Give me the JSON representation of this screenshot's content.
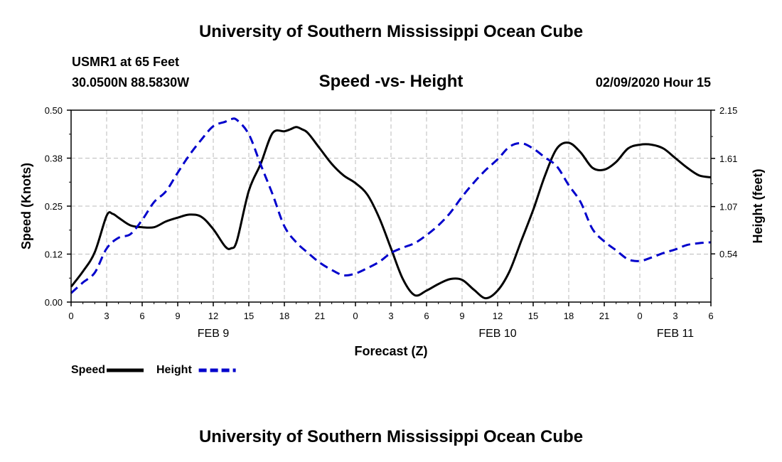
{
  "header": {
    "title_top": "University of Southern Mississippi Ocean Cube",
    "station": "USMR1 at 65 Feet",
    "coords": "30.0500N 88.5830W",
    "plot_title": "Speed -vs- Height",
    "date": "02/09/2020 Hour 15",
    "title_bottom": "University of Southern Mississippi Ocean Cube"
  },
  "chart_data": {
    "type": "line",
    "title": "Speed -vs- Height",
    "xlabel": "Forecast (Z)",
    "ylabel": "Speed (Knots)",
    "y2label": "Height (feet)",
    "x_range": [
      0,
      54
    ],
    "x_unit": "hours since 02/09/2020 00Z",
    "x_ticks": [
      0,
      3,
      6,
      9,
      12,
      15,
      18,
      21,
      24,
      27,
      30,
      33,
      36,
      39,
      42,
      45,
      48,
      51,
      54
    ],
    "x_tick_labels": [
      "0",
      "3",
      "6",
      "9",
      "12",
      "15",
      "18",
      "21",
      "0",
      "3",
      "6",
      "9",
      "12",
      "15",
      "18",
      "21",
      "0",
      "3",
      "6"
    ],
    "date_labels": [
      {
        "x": 12,
        "label": "FEB 9"
      },
      {
        "x": 36,
        "label": "FEB 10"
      },
      {
        "x": 51,
        "label": "FEB 11"
      }
    ],
    "ylim": [
      0,
      0.5
    ],
    "y_ticks": [
      0,
      0.125,
      0.25,
      0.375,
      0.5
    ],
    "y_tick_labels": [
      "0.00",
      "0.12",
      "0.25",
      "0.38",
      "0.50"
    ],
    "y2lim": [
      0,
      2.15
    ],
    "y2_ticks": [
      0.54,
      1.07,
      1.61,
      2.15
    ],
    "y2_tick_labels": [
      "0.54",
      "1.07",
      "1.61",
      "2.15"
    ],
    "grid": true,
    "legend": "bottom-left",
    "series": [
      {
        "name": "Speed",
        "axis": "left",
        "color": "#000000",
        "dash": "solid",
        "x": [
          0,
          1,
          2,
          3,
          3.5,
          4,
          5,
          6,
          7,
          8,
          9,
          10,
          11,
          12,
          13,
          13.5,
          14,
          15,
          16,
          17,
          18,
          18.5,
          19,
          19.5,
          20,
          21,
          22,
          23,
          24,
          25,
          26,
          27,
          28,
          29,
          30,
          31,
          32,
          33,
          34,
          35,
          36,
          37,
          38,
          39,
          40,
          41,
          42,
          43,
          44,
          45,
          46,
          47,
          48,
          49,
          50,
          51,
          52,
          53,
          54
        ],
        "values": [
          0.04,
          0.08,
          0.13,
          0.225,
          0.23,
          0.22,
          0.2,
          0.195,
          0.195,
          0.21,
          0.22,
          0.228,
          0.222,
          0.19,
          0.145,
          0.14,
          0.16,
          0.29,
          0.36,
          0.44,
          0.445,
          0.45,
          0.456,
          0.45,
          0.44,
          0.4,
          0.36,
          0.33,
          0.31,
          0.28,
          0.22,
          0.14,
          0.06,
          0.018,
          0.03,
          0.047,
          0.06,
          0.058,
          0.032,
          0.01,
          0.03,
          0.08,
          0.16,
          0.24,
          0.33,
          0.4,
          0.415,
          0.39,
          0.35,
          0.345,
          0.365,
          0.4,
          0.41,
          0.41,
          0.4,
          0.375,
          0.35,
          0.33,
          0.325
        ]
      },
      {
        "name": "Height",
        "axis": "right",
        "color": "#0000cc",
        "dash": "dashed",
        "x": [
          0,
          1,
          2,
          3,
          4,
          5,
          6,
          7,
          8,
          9,
          10,
          11,
          12,
          13,
          13.5,
          14,
          15,
          16,
          17,
          18,
          19,
          20,
          21,
          22,
          23,
          24,
          25,
          26,
          27,
          28,
          29,
          30,
          31,
          32,
          33,
          34,
          35,
          36,
          37,
          38,
          39,
          40,
          41,
          42,
          43,
          44,
          45,
          46,
          47,
          48,
          49,
          50,
          51,
          52,
          53,
          54
        ],
        "values": [
          0.1,
          0.22,
          0.33,
          0.6,
          0.72,
          0.76,
          0.92,
          1.12,
          1.24,
          1.45,
          1.65,
          1.82,
          1.97,
          2.02,
          2.05,
          2.04,
          1.88,
          1.54,
          1.21,
          0.85,
          0.67,
          0.55,
          0.44,
          0.36,
          0.3,
          0.32,
          0.38,
          0.45,
          0.55,
          0.61,
          0.66,
          0.75,
          0.86,
          1.0,
          1.18,
          1.34,
          1.48,
          1.6,
          1.74,
          1.78,
          1.72,
          1.62,
          1.52,
          1.31,
          1.12,
          0.82,
          0.68,
          0.58,
          0.48,
          0.46,
          0.5,
          0.55,
          0.59,
          0.64,
          0.66,
          0.67
        ]
      }
    ]
  },
  "legend": {
    "items": [
      {
        "label": "Speed",
        "color": "#000000",
        "dash": "solid"
      },
      {
        "label": "Height",
        "color": "#0000cc",
        "dash": "dashed"
      }
    ]
  }
}
